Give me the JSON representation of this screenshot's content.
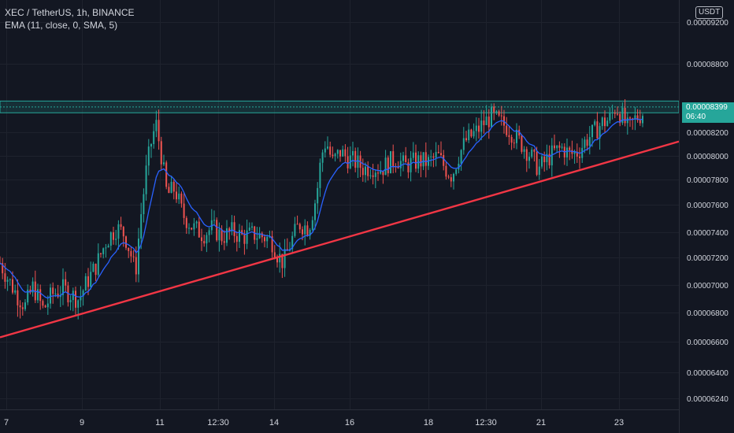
{
  "header": {
    "symbol_line": "XEC / TetherUS, 1h, BINANCE",
    "indicator_line": "EMA (11, close, 0, SMA, 5)"
  },
  "currency_badge": "USDT",
  "last_price": {
    "value": "0.00008399",
    "countdown": "06:40"
  },
  "colors": {
    "background": "#131722",
    "up": "#26a69a",
    "down": "#ef5350",
    "ema": "#2962ff",
    "trendline": "#f23645",
    "zone": "#26a69a",
    "axis_text": "#d1d4dc"
  },
  "chart_data": {
    "type": "candlestick",
    "title": "XEC / TetherUS, 1h, BINANCE",
    "y_axis_ticks": [
      "0.00009200",
      "0.00008800",
      "0.00008200",
      "0.00008000",
      "0.00007800",
      "0.00007600",
      "0.00007400",
      "0.00007200",
      "0.00007000",
      "0.00006800",
      "0.00006600",
      "0.00006400",
      "0.00006240"
    ],
    "x_axis_ticks": [
      "7",
      "9",
      "11",
      "12:30",
      "14",
      "16",
      "18",
      "12:30",
      "21",
      "23"
    ],
    "ylim": [
      6.19e-05,
      9.23e-05
    ],
    "grid": true,
    "price_path": [
      [
        0,
        7.18e-05
      ],
      [
        10,
        7.06e-05
      ],
      [
        22,
        6.93e-05
      ],
      [
        32,
        6.85e-05
      ],
      [
        42,
        7e-05
      ],
      [
        55,
        6.82e-05
      ],
      [
        66,
        6.94e-05
      ],
      [
        80,
        6.98e-05
      ],
      [
        100,
        6.9e-05
      ],
      [
        110,
        7.03e-05
      ],
      [
        122,
        7.16e-05
      ],
      [
        135,
        7.35e-05
      ],
      [
        148,
        7.45e-05
      ],
      [
        158,
        7.4e-05
      ],
      [
        166,
        7.25e-05
      ],
      [
        172,
        7.1e-05
      ],
      [
        178,
        7.5e-05
      ],
      [
        186,
        7.9e-05
      ],
      [
        192,
        8.1e-05
      ],
      [
        198,
        8.25e-05
      ],
      [
        205,
        8e-05
      ],
      [
        212,
        7.7e-05
      ],
      [
        222,
        7.75e-05
      ],
      [
        232,
        7.55e-05
      ],
      [
        245,
        7.45e-05
      ],
      [
        258,
        7.4e-05
      ],
      [
        270,
        7.45e-05
      ],
      [
        282,
        7.38e-05
      ],
      [
        295,
        7.42e-05
      ],
      [
        308,
        7.38e-05
      ],
      [
        322,
        7.4e-05
      ],
      [
        335,
        7.38e-05
      ],
      [
        345,
        7.35e-05
      ],
      [
        352,
        7.25e-05
      ],
      [
        360,
        7.18e-05
      ],
      [
        370,
        7.35e-05
      ],
      [
        380,
        7.48e-05
      ],
      [
        392,
        7.45e-05
      ],
      [
        402,
        7.7e-05
      ],
      [
        408,
        8e-05
      ],
      [
        414,
        8.12e-05
      ],
      [
        422,
        7.95e-05
      ],
      [
        432,
        8.03e-05
      ],
      [
        442,
        7.98e-05
      ],
      [
        452,
        7.95e-05
      ],
      [
        462,
        7.9e-05
      ],
      [
        472,
        7.92e-05
      ],
      [
        484,
        7.9e-05
      ],
      [
        494,
        7.95e-05
      ],
      [
        504,
        7.98e-05
      ],
      [
        514,
        7.92e-05
      ],
      [
        524,
        7.95e-05
      ],
      [
        534,
        7.96e-05
      ],
      [
        544,
        7.95e-05
      ],
      [
        556,
        8e-05
      ],
      [
        566,
        7.9e-05
      ],
      [
        574,
        7.85e-05
      ],
      [
        582,
        8e-05
      ],
      [
        592,
        8.12e-05
      ],
      [
        604,
        8.18e-05
      ],
      [
        614,
        8.25e-05
      ],
      [
        624,
        8.3e-05
      ],
      [
        634,
        8.26e-05
      ],
      [
        644,
        8.22e-05
      ],
      [
        654,
        8.15e-05
      ],
      [
        664,
        8.08e-05
      ],
      [
        674,
        8e-05
      ],
      [
        684,
        7.9e-05
      ],
      [
        694,
        7.97e-05
      ],
      [
        704,
        8.03e-05
      ],
      [
        714,
        8.06e-05
      ],
      [
        724,
        8.01e-05
      ],
      [
        734,
        8.03e-05
      ],
      [
        744,
        8.12e-05
      ],
      [
        754,
        8.18e-05
      ],
      [
        764,
        8.25e-05
      ],
      [
        774,
        8.28e-05
      ],
      [
        782,
        8.38e-05
      ],
      [
        790,
        8.3e-05
      ],
      [
        798,
        8.2e-05
      ],
      [
        806,
        8.28e-05
      ],
      [
        818,
        8.34e-05
      ]
    ],
    "ema_period": 11,
    "trendline": {
      "from": [
        0,
        6.61e-05
      ],
      "to": [
        862,
        8.11e-05
      ]
    },
    "resistance_zone": {
      "low": 8.33e-05,
      "high": 8.42e-05
    }
  }
}
